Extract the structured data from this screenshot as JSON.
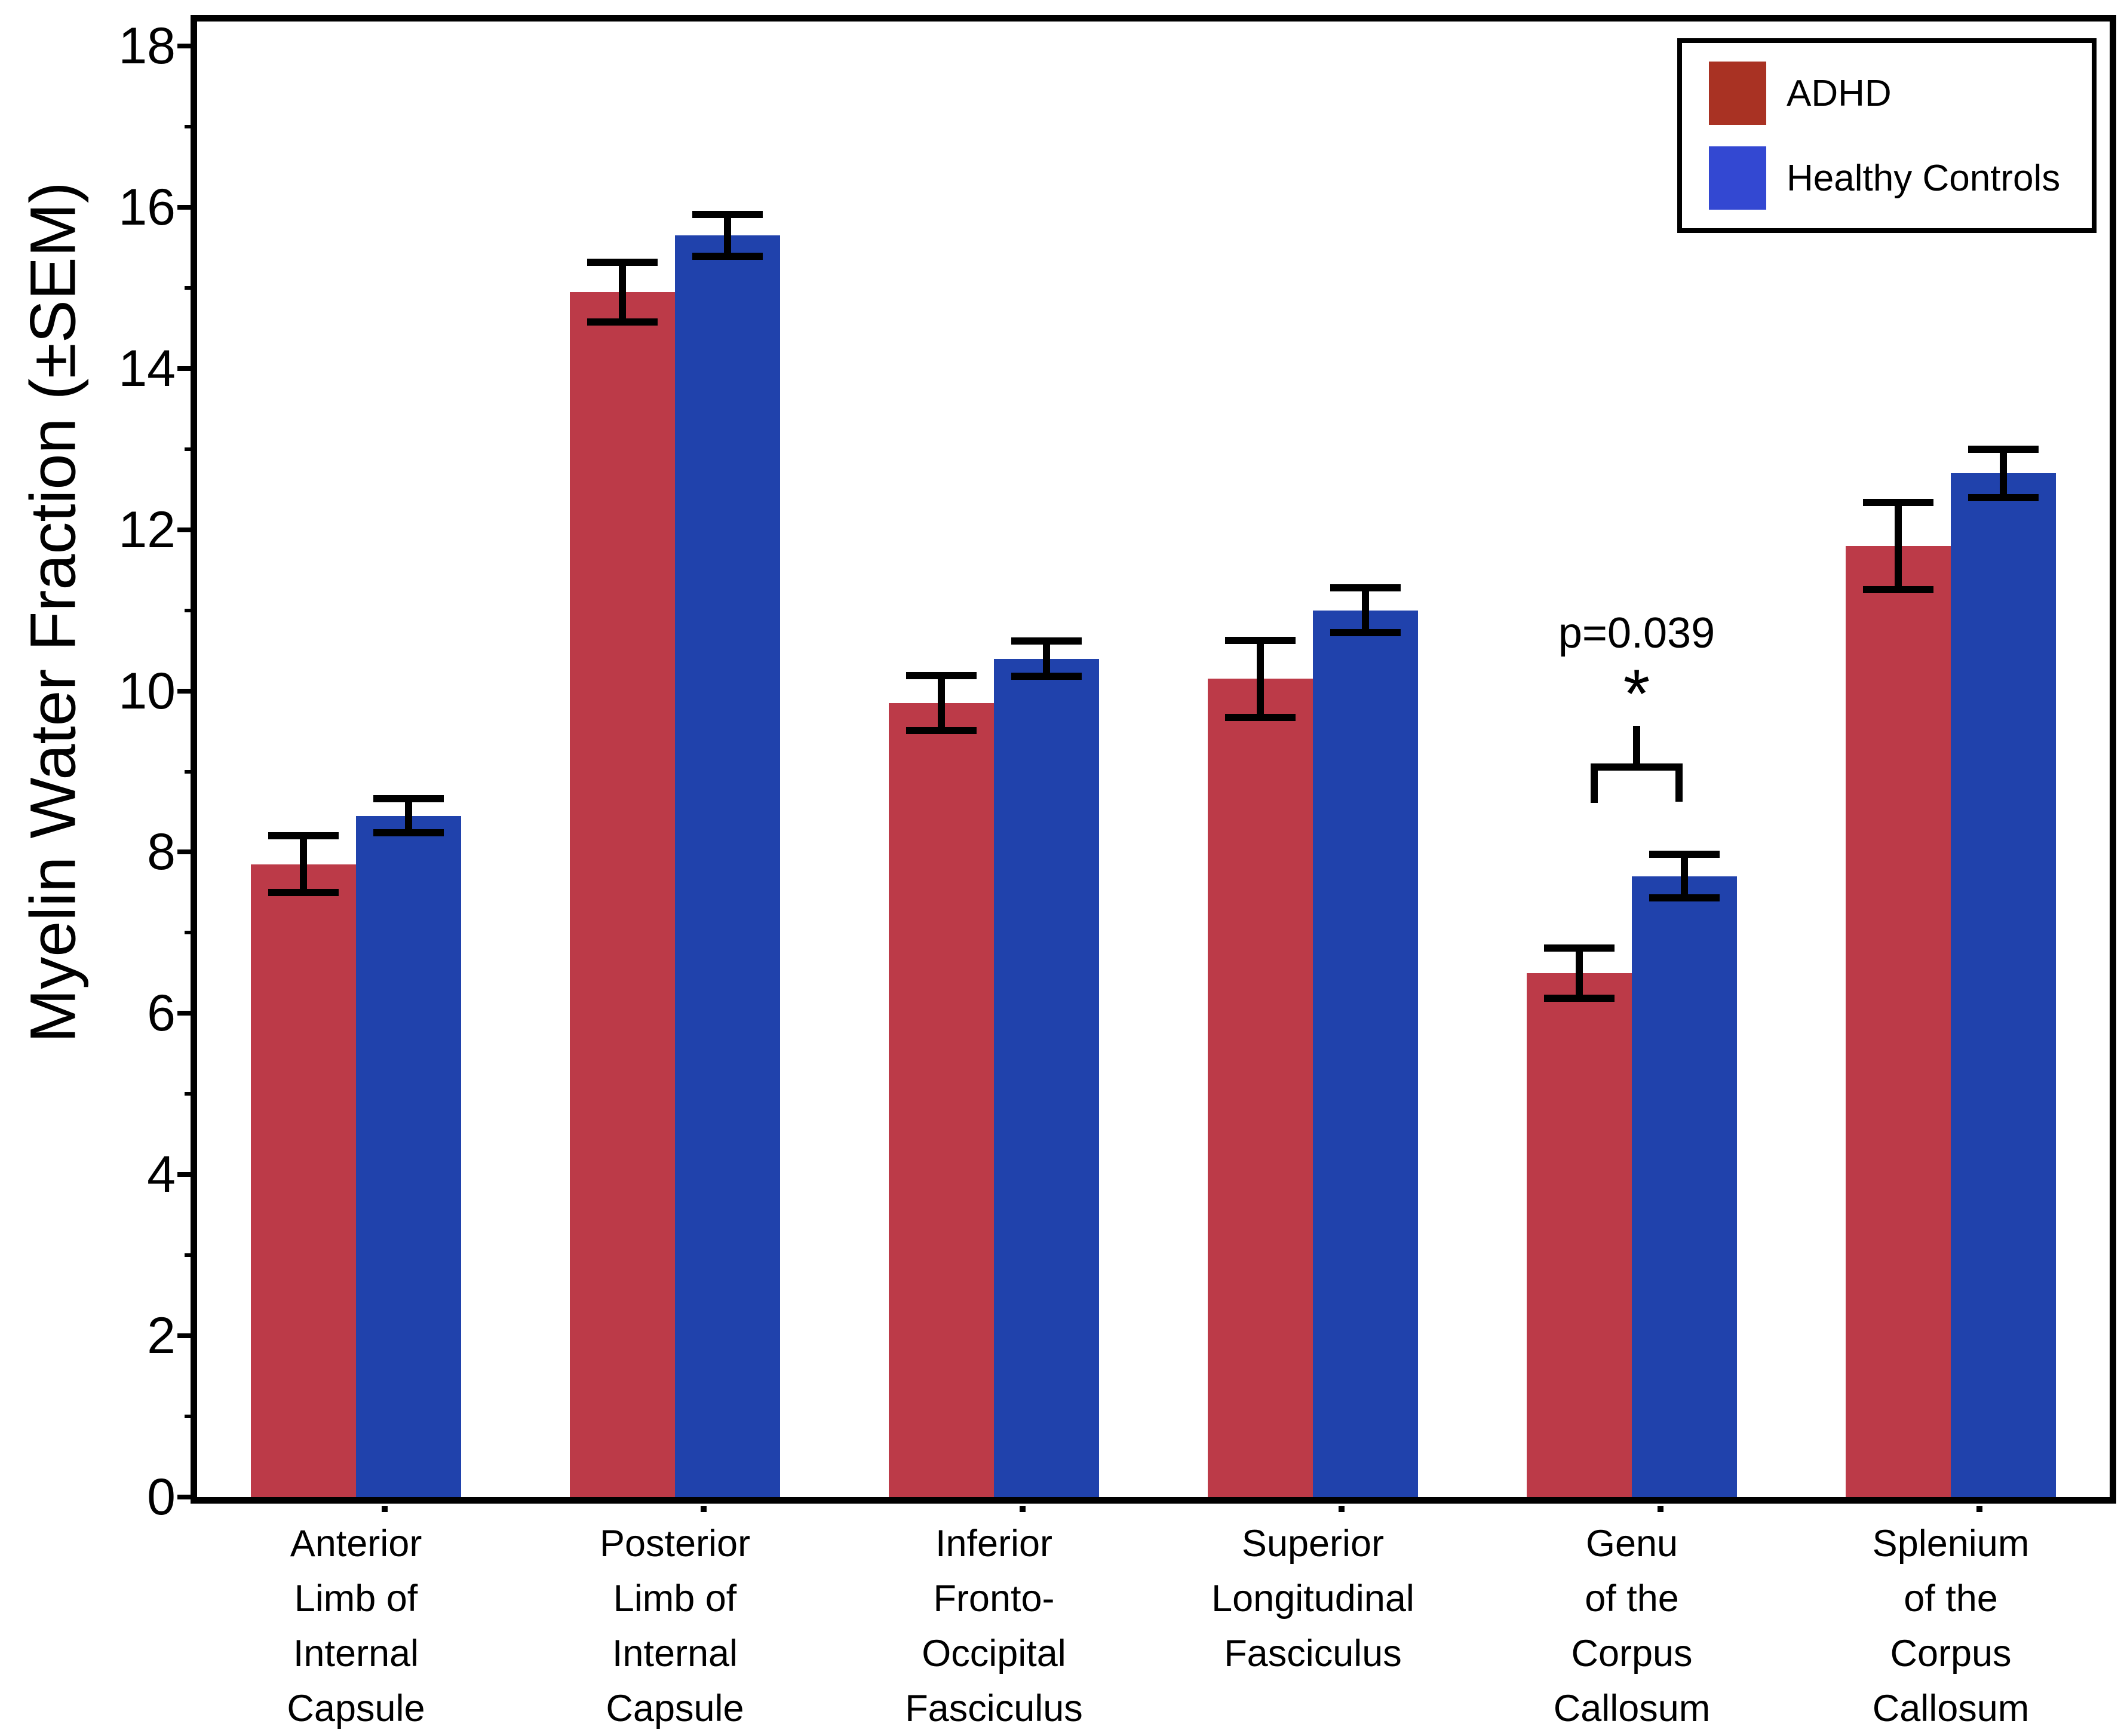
{
  "figure": {
    "background": "#FFFFFF"
  },
  "chart_data": {
    "type": "bar",
    "title": "",
    "xlabel": "",
    "ylabel": "Myelin Water Fraction (±SEM)",
    "ylim": [
      0,
      18
    ],
    "ytick_interval": 2,
    "minor_ticks": true,
    "grid": false,
    "legend_position": "top-right",
    "error_bar_type": "SEM",
    "y_tick_labels": [
      "0",
      "2",
      "4",
      "6",
      "8",
      "10",
      "12",
      "14",
      "16",
      "18"
    ],
    "categories": [
      "Anterior Limb of Internal Capsule",
      "Posterior Limb of Internal Capsule",
      "Inferior Fronto-Occipital Fasciculus",
      "Superior Longitudinal Fasciculus",
      "Genu of the Corpus Callosum",
      "Splenium of the Corpus Callosum"
    ],
    "category_lines": [
      [
        "Anterior",
        "Limb of",
        "Internal",
        "Capsule"
      ],
      [
        "Posterior",
        "Limb of",
        "Internal",
        "Capsule"
      ],
      [
        "Inferior",
        "Fronto-",
        "Occipital",
        "Fasciculus"
      ],
      [
        "Superior",
        "Longitudinal",
        "Fasciculus"
      ],
      [
        "Genu",
        "of the",
        "Corpus",
        "Callosum"
      ],
      [
        "Splenium",
        "of the",
        "Corpus",
        "Callosum"
      ]
    ],
    "series": [
      {
        "name": "ADHD",
        "bar_color": "#BC3A48",
        "values": [
          7.85,
          14.95,
          9.85,
          10.15,
          6.5,
          11.8
        ],
        "sem": [
          0.35,
          0.37,
          0.34,
          0.48,
          0.31,
          0.54
        ]
      },
      {
        "name": "Healthy Controls",
        "bar_color": "#2042AC",
        "values": [
          8.45,
          15.65,
          10.4,
          11.0,
          7.7,
          12.7
        ],
        "sem": [
          0.21,
          0.26,
          0.22,
          0.28,
          0.27,
          0.3
        ]
      }
    ],
    "annotation": {
      "p_label": "p=0.039",
      "star": "*",
      "target_category_index": 4,
      "target_category": "Genu of the Corpus Callosum"
    }
  },
  "legend": {
    "items": [
      {
        "label": "ADHD",
        "swatch_color": "#A93223"
      },
      {
        "label": "Healthy Controls",
        "swatch_color": "#3348D2"
      }
    ]
  }
}
